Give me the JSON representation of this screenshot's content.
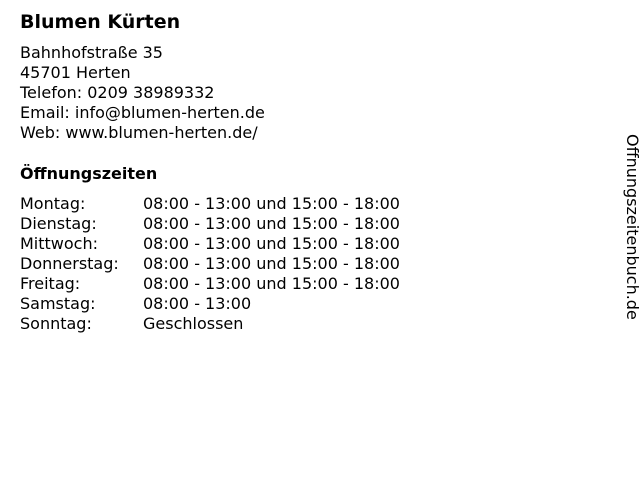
{
  "business": {
    "name": "Blumen Kürten",
    "street": "Bahnhofstraße 35",
    "city": "45701 Herten",
    "phone": "Telefon: 0209 38989332",
    "email": "Email: info@blumen-herten.de",
    "web": "Web: www.blumen-herten.de/"
  },
  "hours": {
    "heading": "Öffnungszeiten",
    "rows": [
      {
        "day": "Montag:",
        "time": "08:00 - 13:00 und 15:00 - 18:00"
      },
      {
        "day": "Dienstag:",
        "time": "08:00 - 13:00 und 15:00 - 18:00"
      },
      {
        "day": "Mittwoch:",
        "time": "08:00 - 13:00 und 15:00 - 18:00"
      },
      {
        "day": "Donnerstag:",
        "time": "08:00 - 13:00 und 15:00 - 18:00"
      },
      {
        "day": "Freitag:",
        "time": "08:00 - 13:00 und 15:00 - 18:00"
      },
      {
        "day": "Samstag:",
        "time": "08:00 - 13:00"
      },
      {
        "day": "Sonntag:",
        "time": "Geschlossen"
      }
    ]
  },
  "watermark": "Öffnungszeitenbuch.de"
}
